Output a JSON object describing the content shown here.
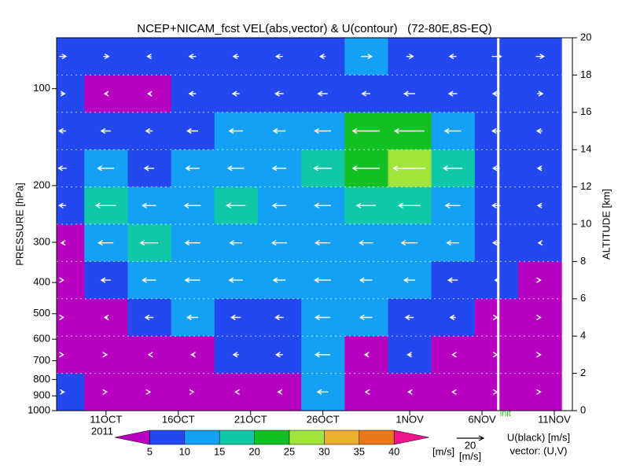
{
  "chart_data": {
    "type": "contour",
    "title": "NCEP+NICAM_fcst VEL(abs,vector) & U(contour)   (72-80E,8S-EQ)",
    "y_label": "PRESSURE [hPa]",
    "y2_label": "ALTITUDE [km]",
    "year_label": "2011",
    "init_label": "init",
    "init_time": "2011-11-07T03:00:00Z",
    "xlim": [
      "2011-10-07T14:00:00Z",
      "2011-11-12T06:00:00Z"
    ],
    "xticks": [
      {
        "value": "2011-10-11T00:00:00Z",
        "label": "11OCT"
      },
      {
        "value": "2011-10-16T00:00:00Z",
        "label": "16OCT"
      },
      {
        "value": "2011-10-21T00:00:00Z",
        "label": "21OCT"
      },
      {
        "value": "2011-10-26T00:00:00Z",
        "label": "26OCT"
      },
      {
        "value": "2011-11-01T00:00:00Z",
        "label": "1NOV"
      },
      {
        "value": "2011-11-06T00:00:00Z",
        "label": "6NOV"
      },
      {
        "value": "2011-11-11T00:00:00Z",
        "label": "11NOV"
      }
    ],
    "ylim": [
      1000,
      69.5
    ],
    "log_scale": true,
    "yticks": [
      100,
      200,
      300,
      400,
      500,
      600,
      700,
      800,
      900,
      1000
    ],
    "y2lim": [
      0,
      20
    ],
    "y2ticks": [
      0,
      2,
      4,
      6,
      8,
      10,
      12,
      14,
      16,
      18,
      20
    ],
    "grid": true,
    "x": [
      "2011-10-08T00:00:00Z",
      "2011-10-11T00:00:00Z",
      "2011-10-14T00:00:00Z",
      "2011-10-17T00:00:00Z",
      "2011-10-20T00:00:00Z",
      "2011-10-23T00:00:00Z",
      "2011-10-26T00:00:00Z",
      "2011-10-29T00:00:00Z",
      "2011-11-01T00:00:00Z",
      "2011-11-04T00:00:00Z",
      "2011-11-07T00:00:00Z",
      "2011-11-10T00:00:00Z"
    ],
    "altitude": [
      19,
      17,
      15,
      13,
      11,
      9,
      7,
      5,
      3,
      1
    ],
    "speed": [
      [
        8,
        7,
        6,
        9,
        6,
        7,
        7,
        12,
        8,
        7,
        8,
        9
      ],
      [
        6,
        4,
        3,
        7,
        6,
        8,
        9,
        8,
        9,
        8,
        7,
        6
      ],
      [
        7,
        8,
        6,
        9,
        12,
        11,
        13,
        22,
        24,
        14,
        8,
        7
      ],
      [
        9,
        14,
        9,
        12,
        13,
        12,
        15,
        22,
        26,
        16,
        8,
        7
      ],
      [
        8,
        17,
        11,
        14,
        16,
        12,
        14,
        16,
        18,
        13,
        9,
        7
      ],
      [
        4,
        13,
        15,
        13,
        11,
        13,
        13,
        12,
        14,
        11,
        8,
        6
      ],
      [
        3,
        9,
        12,
        13,
        12,
        11,
        14,
        11,
        10,
        9,
        5,
        4
      ],
      [
        2,
        4,
        8,
        10,
        9,
        8,
        13,
        11,
        8,
        6,
        3,
        3
      ],
      [
        2,
        3,
        3,
        4,
        6,
        7,
        13,
        4,
        5,
        3,
        2,
        2
      ],
      [
        6,
        3,
        2,
        2,
        3,
        4,
        10,
        3,
        4,
        3,
        2,
        2
      ]
    ],
    "u": [
      [
        5,
        4,
        -3,
        -5,
        -4,
        -5,
        -4,
        8,
        5,
        -5,
        7,
        6
      ],
      [
        3,
        -2,
        -2,
        -5,
        -5,
        -6,
        -7,
        -6,
        -8,
        -6,
        -5,
        4
      ],
      [
        -5,
        -7,
        -5,
        -8,
        -10,
        -9,
        -12,
        -20,
        -22,
        -12,
        -6,
        -4
      ],
      [
        -6,
        -12,
        -7,
        -10,
        -12,
        -10,
        -13,
        -20,
        -24,
        -14,
        -5,
        -3
      ],
      [
        -5,
        -15,
        -10,
        -12,
        -14,
        -10,
        -12,
        -14,
        -16,
        -11,
        -6,
        -3
      ],
      [
        -2,
        -11,
        -13,
        -11,
        -9,
        -11,
        -11,
        -10,
        -12,
        -9,
        -5,
        -2
      ],
      [
        1,
        -7,
        -10,
        -11,
        -10,
        -9,
        -12,
        -9,
        -8,
        -7,
        -2,
        1
      ],
      [
        1,
        -2,
        -6,
        -8,
        -7,
        -6,
        -11,
        -9,
        -6,
        -4,
        1,
        1
      ],
      [
        1,
        1,
        -1,
        -2,
        -4,
        -5,
        -11,
        -2,
        -3,
        -1,
        1,
        1
      ],
      [
        2,
        1,
        1,
        1,
        -1,
        -2,
        -8,
        -1,
        -2,
        -1,
        1,
        1
      ]
    ],
    "levels": [
      5,
      10,
      15,
      20,
      25,
      30,
      35,
      40
    ],
    "colors": [
      "#b800c0",
      "#2448f0",
      "#14a0f4",
      "#10c8a8",
      "#14c024",
      "#a0e43c",
      "#e8b02c",
      "#e87818",
      "#f0148c"
    ],
    "unit_label": "[m/s]",
    "vector_reference": 20,
    "vector_reference_unit": "[m/s]",
    "contour_note": "U(black) [m/s]",
    "vector_note": "vector: (U,V)"
  }
}
